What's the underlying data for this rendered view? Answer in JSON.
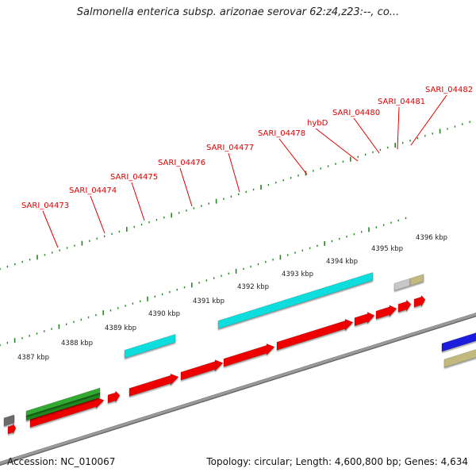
{
  "title": "Salmonella enterica subsp. arizonae serovar 62:z4,z23:--, co...",
  "footer": {
    "accession": "Accession: NC_010067",
    "info": "Topology: circular; Length: 4,600,800 bp; Genes: 4,634"
  },
  "colors": {
    "cds": "#ee0000",
    "rna_cyan": "#11dddd",
    "green": "#33aa33",
    "khaki": "#c2b97e",
    "blue": "#1a1add",
    "grey": "#c8c8c8",
    "dark_grey": "#6a6a6a",
    "backbone": "#8a8a8a",
    "tick": "#228822",
    "label_red": "#dd0000"
  },
  "ruler": {
    "unit": "kbp",
    "labels": [
      "4387 kbp",
      "4388 kbp",
      "4389 kbp",
      "4390 kbp",
      "4391 kbp",
      "4392 kbp",
      "4393 kbp",
      "4394 kbp",
      "4395 kbp",
      "4396 kbp"
    ]
  },
  "gene_labels": [
    "SARI_04473",
    "SARI_04474",
    "SARI_04475",
    "SARI_04476",
    "SARI_04477",
    "SARI_04478",
    "hybD",
    "SARI_04480",
    "SARI_04481",
    "SARI_04482"
  ]
}
